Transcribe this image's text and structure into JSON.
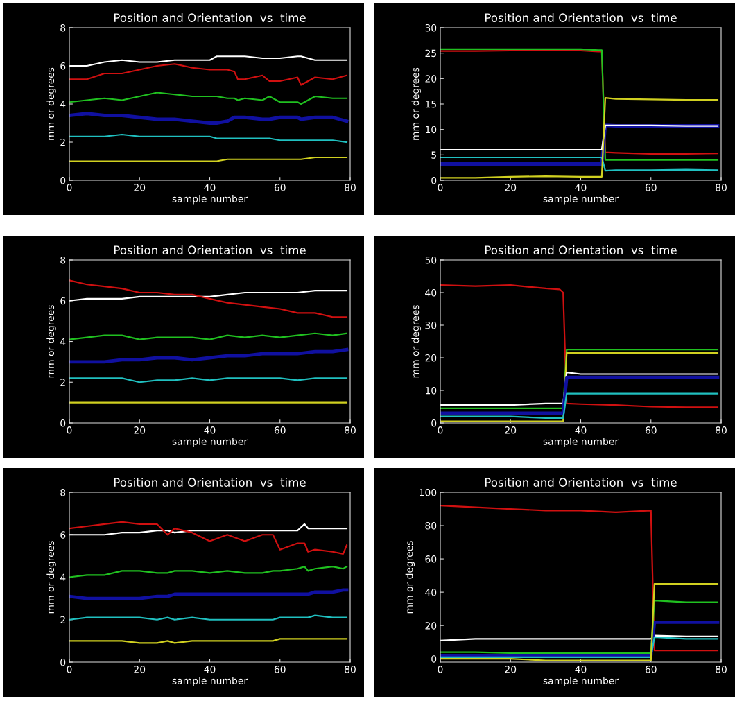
{
  "chart_data": [
    {
      "type": "line",
      "title": "Position and Orientation  vs  time",
      "xlabel": "sample number",
      "ylabel": "mm or degrees",
      "xlim": [
        0,
        80
      ],
      "xticks": [
        0,
        20,
        40,
        60,
        80
      ],
      "ylim": [
        0,
        8
      ],
      "yticks": [
        0,
        2,
        4,
        6,
        8
      ],
      "series": [
        {
          "color": "#ffffff",
          "x": [
            0,
            5,
            10,
            15,
            20,
            25,
            30,
            35,
            40,
            42,
            45,
            47,
            48,
            50,
            55,
            57,
            60,
            65,
            66,
            70,
            75,
            79
          ],
          "values": [
            6.0,
            6.0,
            6.2,
            6.3,
            6.2,
            6.2,
            6.3,
            6.3,
            6.3,
            6.5,
            6.5,
            6.5,
            6.5,
            6.5,
            6.4,
            6.4,
            6.4,
            6.5,
            6.5,
            6.3,
            6.3,
            6.3
          ]
        },
        {
          "color": "#d01010",
          "x": [
            0,
            5,
            10,
            15,
            20,
            25,
            30,
            35,
            40,
            42,
            45,
            47,
            48,
            50,
            55,
            57,
            60,
            65,
            66,
            70,
            75,
            79
          ],
          "values": [
            5.3,
            5.3,
            5.6,
            5.6,
            5.8,
            6.0,
            6.1,
            5.9,
            5.8,
            5.8,
            5.8,
            5.7,
            5.3,
            5.3,
            5.5,
            5.2,
            5.2,
            5.4,
            5.0,
            5.4,
            5.3,
            5.5
          ]
        },
        {
          "color": "#20c020",
          "x": [
            0,
            5,
            10,
            15,
            20,
            25,
            30,
            35,
            40,
            42,
            45,
            47,
            48,
            50,
            55,
            57,
            60,
            65,
            66,
            70,
            75,
            79
          ],
          "values": [
            4.1,
            4.2,
            4.3,
            4.2,
            4.4,
            4.6,
            4.5,
            4.4,
            4.4,
            4.4,
            4.3,
            4.3,
            4.2,
            4.3,
            4.2,
            4.4,
            4.1,
            4.1,
            4.0,
            4.4,
            4.3,
            4.3
          ]
        },
        {
          "color": "#1010a0",
          "x": [
            0,
            5,
            10,
            15,
            20,
            25,
            30,
            35,
            40,
            42,
            45,
            47,
            48,
            50,
            55,
            57,
            60,
            65,
            66,
            70,
            75,
            79
          ],
          "values": [
            3.4,
            3.5,
            3.4,
            3.4,
            3.3,
            3.2,
            3.2,
            3.1,
            3.0,
            3.0,
            3.1,
            3.3,
            3.3,
            3.3,
            3.2,
            3.2,
            3.3,
            3.3,
            3.2,
            3.3,
            3.3,
            3.1
          ]
        },
        {
          "color": "#20c0c0",
          "x": [
            0,
            5,
            10,
            15,
            20,
            25,
            30,
            35,
            40,
            42,
            45,
            47,
            48,
            50,
            55,
            57,
            60,
            65,
            66,
            70,
            75,
            79
          ],
          "values": [
            2.3,
            2.3,
            2.3,
            2.4,
            2.3,
            2.3,
            2.3,
            2.3,
            2.3,
            2.2,
            2.2,
            2.2,
            2.2,
            2.2,
            2.2,
            2.2,
            2.1,
            2.1,
            2.1,
            2.1,
            2.1,
            2.0
          ]
        },
        {
          "color": "#d0d020",
          "x": [
            0,
            5,
            10,
            15,
            20,
            25,
            30,
            35,
            40,
            42,
            45,
            47,
            48,
            50,
            55,
            57,
            60,
            65,
            66,
            70,
            75,
            79
          ],
          "values": [
            1.0,
            1.0,
            1.0,
            1.0,
            1.0,
            1.0,
            1.0,
            1.0,
            1.0,
            1.0,
            1.1,
            1.1,
            1.1,
            1.1,
            1.1,
            1.1,
            1.1,
            1.1,
            1.1,
            1.2,
            1.2,
            1.2
          ]
        }
      ]
    },
    {
      "type": "line",
      "title": "Position and Orientation  vs  time",
      "xlabel": "sample number",
      "ylabel": "mm or degrees",
      "xlim": [
        0,
        80
      ],
      "xticks": [
        0,
        20,
        40,
        60,
        80
      ],
      "ylim": [
        0,
        30
      ],
      "yticks": [
        0,
        5,
        10,
        15,
        20,
        25,
        30
      ],
      "series": [
        {
          "color": "#d01010",
          "x": [
            0,
            10,
            20,
            30,
            40,
            45,
            46,
            47,
            50,
            60,
            70,
            79
          ],
          "values": [
            25.4,
            25.4,
            25.5,
            25.5,
            25.5,
            25.3,
            25.3,
            5.5,
            5.4,
            5.2,
            5.2,
            5.3
          ]
        },
        {
          "color": "#20c020",
          "x": [
            0,
            10,
            20,
            30,
            40,
            45,
            46,
            47,
            50,
            60,
            70,
            79
          ],
          "values": [
            25.8,
            25.8,
            25.8,
            25.8,
            25.8,
            25.6,
            25.6,
            4.0,
            4.0,
            4.0,
            4.0,
            4.0
          ]
        },
        {
          "color": "#1010a0",
          "x": [
            0,
            10,
            20,
            30,
            40,
            45,
            46,
            47,
            50,
            60,
            70,
            79
          ],
          "values": [
            3.2,
            3.2,
            3.2,
            3.2,
            3.2,
            3.2,
            3.2,
            10.8,
            10.7,
            10.7,
            10.7,
            10.7
          ]
        },
        {
          "color": "#ffffff",
          "x": [
            0,
            10,
            20,
            30,
            40,
            45,
            46,
            47,
            50,
            60,
            70,
            79
          ],
          "values": [
            6.0,
            6.0,
            6.0,
            6.0,
            6.0,
            6.0,
            6.0,
            10.8,
            10.8,
            10.8,
            10.7,
            10.7
          ]
        },
        {
          "color": "#20c0c0",
          "x": [
            0,
            10,
            20,
            30,
            40,
            45,
            46,
            47,
            50,
            60,
            70,
            79
          ],
          "values": [
            4.5,
            4.5,
            4.5,
            4.5,
            4.5,
            4.5,
            4.5,
            1.9,
            2.0,
            2.0,
            2.1,
            2.0
          ]
        },
        {
          "color": "#d0d020",
          "x": [
            0,
            10,
            20,
            30,
            40,
            45,
            46,
            47,
            50,
            60,
            70,
            79
          ],
          "values": [
            0.5,
            0.5,
            0.7,
            0.8,
            0.7,
            0.7,
            0.7,
            16.2,
            16.0,
            15.9,
            15.8,
            15.8
          ]
        }
      ]
    },
    {
      "type": "line",
      "title": "Position and Orientation  vs  time",
      "xlabel": "sample number",
      "ylabel": "mm or degrees",
      "xlim": [
        0,
        80
      ],
      "xticks": [
        0,
        20,
        40,
        60,
        80
      ],
      "ylim": [
        0,
        8
      ],
      "yticks": [
        0,
        2,
        4,
        6,
        8
      ],
      "series": [
        {
          "color": "#ffffff",
          "x": [
            0,
            5,
            10,
            15,
            20,
            25,
            30,
            35,
            40,
            45,
            50,
            55,
            60,
            65,
            70,
            75,
            79
          ],
          "values": [
            6.0,
            6.1,
            6.1,
            6.1,
            6.2,
            6.2,
            6.2,
            6.2,
            6.2,
            6.3,
            6.4,
            6.4,
            6.4,
            6.4,
            6.5,
            6.5,
            6.5
          ]
        },
        {
          "color": "#d01010",
          "x": [
            0,
            5,
            10,
            15,
            20,
            25,
            30,
            35,
            40,
            45,
            50,
            55,
            60,
            65,
            70,
            75,
            79
          ],
          "values": [
            7.0,
            6.8,
            6.7,
            6.6,
            6.4,
            6.4,
            6.3,
            6.3,
            6.1,
            5.9,
            5.8,
            5.7,
            5.6,
            5.4,
            5.4,
            5.2,
            5.2
          ]
        },
        {
          "color": "#20c020",
          "x": [
            0,
            5,
            10,
            15,
            20,
            25,
            30,
            35,
            40,
            45,
            50,
            55,
            60,
            65,
            70,
            75,
            79
          ],
          "values": [
            4.1,
            4.2,
            4.3,
            4.3,
            4.1,
            4.2,
            4.2,
            4.2,
            4.1,
            4.3,
            4.2,
            4.3,
            4.2,
            4.3,
            4.4,
            4.3,
            4.4
          ]
        },
        {
          "color": "#1010a0",
          "x": [
            0,
            5,
            10,
            15,
            20,
            25,
            30,
            35,
            40,
            45,
            50,
            55,
            60,
            65,
            70,
            75,
            79
          ],
          "values": [
            3.0,
            3.0,
            3.0,
            3.1,
            3.1,
            3.2,
            3.2,
            3.1,
            3.2,
            3.3,
            3.3,
            3.4,
            3.4,
            3.4,
            3.5,
            3.5,
            3.6
          ]
        },
        {
          "color": "#20c0c0",
          "x": [
            0,
            5,
            10,
            15,
            20,
            25,
            30,
            35,
            40,
            45,
            50,
            55,
            60,
            65,
            70,
            75,
            79
          ],
          "values": [
            2.2,
            2.2,
            2.2,
            2.2,
            2.0,
            2.1,
            2.1,
            2.2,
            2.1,
            2.2,
            2.2,
            2.2,
            2.2,
            2.1,
            2.2,
            2.2,
            2.2
          ]
        },
        {
          "color": "#d0d020",
          "x": [
            0,
            5,
            10,
            15,
            20,
            25,
            30,
            35,
            40,
            45,
            50,
            55,
            60,
            65,
            70,
            75,
            79
          ],
          "values": [
            1.0,
            1.0,
            1.0,
            1.0,
            1.0,
            1.0,
            1.0,
            1.0,
            1.0,
            1.0,
            1.0,
            1.0,
            1.0,
            1.0,
            1.0,
            1.0,
            1.0
          ]
        }
      ]
    },
    {
      "type": "line",
      "title": "Position and Orientation  vs  time",
      "xlabel": "sample number",
      "ylabel": "mm or degrees",
      "xlim": [
        0,
        80
      ],
      "xticks": [
        0,
        20,
        40,
        60,
        80
      ],
      "ylim": [
        0,
        50
      ],
      "yticks": [
        0,
        10,
        20,
        30,
        40,
        50
      ],
      "series": [
        {
          "color": "#d01010",
          "x": [
            0,
            10,
            20,
            30,
            34,
            35,
            36,
            40,
            50,
            60,
            70,
            79
          ],
          "values": [
            42.3,
            42,
            42.3,
            41.3,
            41,
            40,
            6,
            5.8,
            5.5,
            5,
            4.8,
            4.8
          ]
        },
        {
          "color": "#20c020",
          "x": [
            0,
            10,
            20,
            30,
            34,
            35,
            36,
            40,
            50,
            60,
            70,
            79
          ],
          "values": [
            4.5,
            4.5,
            4.5,
            4.5,
            4.5,
            4.5,
            22.5,
            22.5,
            22.5,
            22.5,
            22.5,
            22.5
          ]
        },
        {
          "color": "#d0d020",
          "x": [
            0,
            10,
            20,
            30,
            34,
            35,
            36,
            40,
            50,
            60,
            70,
            79
          ],
          "values": [
            0.5,
            0.5,
            0.5,
            0.5,
            0.5,
            0.5,
            21.5,
            21.5,
            21.5,
            21.5,
            21.5,
            21.5
          ]
        },
        {
          "color": "#ffffff",
          "x": [
            0,
            10,
            20,
            30,
            34,
            35,
            36,
            40,
            50,
            60,
            70,
            79
          ],
          "values": [
            5.5,
            5.5,
            5.5,
            6,
            6,
            6,
            15.5,
            15,
            15,
            15,
            15,
            15
          ]
        },
        {
          "color": "#1010a0",
          "x": [
            0,
            10,
            20,
            30,
            34,
            35,
            36,
            40,
            50,
            60,
            70,
            79
          ],
          "values": [
            3,
            3,
            3,
            3,
            3,
            3,
            14,
            14,
            14,
            14,
            14,
            14
          ]
        },
        {
          "color": "#20c0c0",
          "x": [
            0,
            10,
            20,
            30,
            34,
            35,
            36,
            40,
            50,
            60,
            70,
            79
          ],
          "values": [
            2,
            2,
            2,
            1.5,
            1.5,
            1.5,
            9,
            9,
            9,
            9,
            9,
            9
          ]
        }
      ]
    },
    {
      "type": "line",
      "title": "Position and Orientation  vs  time",
      "xlabel": "sample number",
      "ylabel": "mm or degrees",
      "xlim": [
        0,
        80
      ],
      "xticks": [
        0,
        20,
        40,
        60,
        80
      ],
      "ylim": [
        0,
        8
      ],
      "yticks": [
        0,
        2,
        4,
        6,
        8
      ],
      "series": [
        {
          "color": "#ffffff",
          "x": [
            0,
            5,
            10,
            15,
            20,
            25,
            28,
            30,
            35,
            40,
            45,
            50,
            55,
            58,
            60,
            65,
            67,
            68,
            70,
            75,
            78,
            79
          ],
          "values": [
            6.0,
            6.0,
            6.0,
            6.1,
            6.1,
            6.2,
            6.2,
            6.1,
            6.2,
            6.2,
            6.2,
            6.2,
            6.2,
            6.2,
            6.2,
            6.2,
            6.5,
            6.3,
            6.3,
            6.3,
            6.3,
            6.3
          ]
        },
        {
          "color": "#d01010",
          "x": [
            0,
            5,
            10,
            15,
            20,
            25,
            28,
            30,
            35,
            40,
            45,
            50,
            55,
            58,
            60,
            65,
            67,
            68,
            70,
            75,
            78,
            79
          ],
          "values": [
            6.3,
            6.4,
            6.5,
            6.6,
            6.5,
            6.5,
            6.0,
            6.3,
            6.1,
            5.7,
            6.0,
            5.7,
            6.0,
            6.0,
            5.3,
            5.6,
            5.6,
            5.2,
            5.3,
            5.2,
            5.1,
            5.5
          ]
        },
        {
          "color": "#20c020",
          "x": [
            0,
            5,
            10,
            15,
            20,
            25,
            28,
            30,
            35,
            40,
            45,
            50,
            55,
            58,
            60,
            65,
            67,
            68,
            70,
            75,
            78,
            79
          ],
          "values": [
            4.0,
            4.1,
            4.1,
            4.3,
            4.3,
            4.2,
            4.2,
            4.3,
            4.3,
            4.2,
            4.3,
            4.2,
            4.2,
            4.3,
            4.3,
            4.4,
            4.5,
            4.3,
            4.4,
            4.5,
            4.4,
            4.5
          ]
        },
        {
          "color": "#1010a0",
          "x": [
            0,
            5,
            10,
            15,
            20,
            25,
            28,
            30,
            35,
            40,
            45,
            50,
            55,
            58,
            60,
            65,
            67,
            68,
            70,
            75,
            78,
            79
          ],
          "values": [
            3.1,
            3.0,
            3.0,
            3.0,
            3.0,
            3.1,
            3.1,
            3.2,
            3.2,
            3.2,
            3.2,
            3.2,
            3.2,
            3.2,
            3.2,
            3.2,
            3.2,
            3.2,
            3.3,
            3.3,
            3.4,
            3.4
          ]
        },
        {
          "color": "#20c0c0",
          "x": [
            0,
            5,
            10,
            15,
            20,
            25,
            28,
            30,
            35,
            40,
            45,
            50,
            55,
            58,
            60,
            65,
            67,
            68,
            70,
            75,
            78,
            79
          ],
          "values": [
            2.0,
            2.1,
            2.1,
            2.1,
            2.1,
            2.0,
            2.1,
            2.0,
            2.1,
            2.0,
            2.0,
            2.0,
            2.0,
            2.0,
            2.1,
            2.1,
            2.1,
            2.1,
            2.2,
            2.1,
            2.1,
            2.1
          ]
        },
        {
          "color": "#d0d020",
          "x": [
            0,
            5,
            10,
            15,
            20,
            25,
            28,
            30,
            35,
            40,
            45,
            50,
            55,
            58,
            60,
            65,
            67,
            68,
            70,
            75,
            78,
            79
          ],
          "values": [
            1.0,
            1.0,
            1.0,
            1.0,
            0.9,
            0.9,
            1.0,
            0.9,
            1.0,
            1.0,
            1.0,
            1.0,
            1.0,
            1.0,
            1.1,
            1.1,
            1.1,
            1.1,
            1.1,
            1.1,
            1.1,
            1.1
          ]
        }
      ]
    },
    {
      "type": "line",
      "title": "Position and Orientation  vs  time",
      "xlabel": "sample number",
      "ylabel": "mm or degrees",
      "xlim": [
        0,
        80
      ],
      "xticks": [
        0,
        20,
        40,
        60,
        80
      ],
      "ylim": [
        -2,
        100
      ],
      "yticks": [
        0,
        20,
        40,
        60,
        80,
        100
      ],
      "series": [
        {
          "color": "#d01010",
          "x": [
            0,
            10,
            20,
            30,
            40,
            50,
            60,
            61,
            70,
            79
          ],
          "values": [
            92,
            91,
            90,
            89,
            89,
            88,
            89,
            5,
            5,
            5
          ]
        },
        {
          "color": "#ffffff",
          "x": [
            0,
            10,
            20,
            30,
            40,
            50,
            60,
            61,
            70,
            79
          ],
          "values": [
            11,
            12,
            12,
            12,
            12,
            12,
            12,
            14,
            13.5,
            13.5
          ]
        },
        {
          "color": "#1010a0",
          "x": [
            0,
            10,
            20,
            30,
            40,
            50,
            60,
            61,
            70,
            79
          ],
          "values": [
            2,
            2,
            2,
            2,
            2,
            2,
            2,
            22,
            22,
            22
          ]
        },
        {
          "color": "#20c020",
          "x": [
            0,
            10,
            20,
            30,
            40,
            50,
            60,
            61,
            70,
            79
          ],
          "values": [
            4,
            4,
            3.5,
            3.5,
            3.5,
            3.5,
            3.5,
            35,
            34,
            34
          ]
        },
        {
          "color": "#20c0c0",
          "x": [
            0,
            10,
            20,
            30,
            40,
            50,
            60,
            61,
            70,
            79
          ],
          "values": [
            1,
            1,
            1,
            1,
            1,
            1,
            1,
            13,
            12,
            12
          ]
        },
        {
          "color": "#d0d020",
          "x": [
            0,
            10,
            20,
            30,
            40,
            50,
            60,
            61,
            70,
            79
          ],
          "values": [
            0,
            0,
            0,
            -1,
            -1,
            -1,
            -1,
            45,
            45,
            45
          ]
        }
      ]
    }
  ]
}
